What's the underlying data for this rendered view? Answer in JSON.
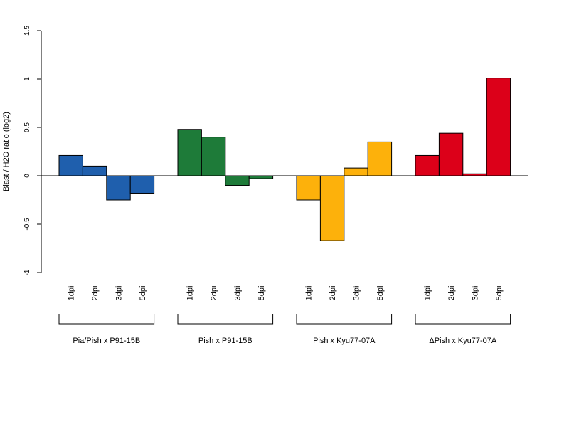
{
  "chart_data": {
    "type": "bar",
    "title": "",
    "xlabel": "",
    "ylabel": "Blast / H2O ratio (log2)",
    "ylim": [
      -1,
      1.5
    ],
    "yticks": [
      "-1",
      "-0.5",
      "0",
      "0.5",
      "1",
      "1.5"
    ],
    "grid": false,
    "legend": "none",
    "categories": [
      "1dpi",
      "2dpi",
      "3dpi",
      "5dpi"
    ],
    "groups": [
      {
        "name": "Pia/Pish x P91-15B",
        "color": "#1f5fad",
        "values": [
          0.21,
          0.1,
          -0.25,
          -0.18
        ]
      },
      {
        "name": "Pish x P91-15B",
        "color": "#1e7b39",
        "values": [
          0.48,
          0.4,
          -0.1,
          -0.03
        ]
      },
      {
        "name": "Pish x Kyu77-07A",
        "color": "#fdb10b",
        "values": [
          -0.25,
          -0.67,
          0.08,
          0.35
        ]
      },
      {
        "name": "ΔPish x Kyu77-07A",
        "color": "#dc0019",
        "values": [
          0.21,
          0.44,
          0.02,
          1.01
        ]
      }
    ]
  }
}
